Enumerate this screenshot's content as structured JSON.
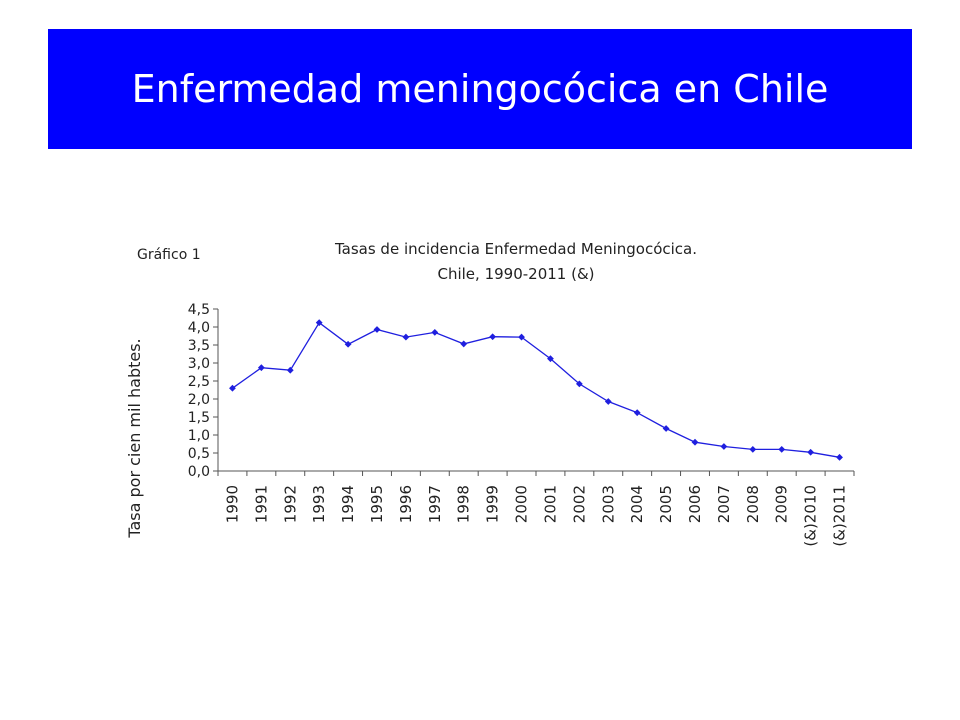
{
  "slide": {
    "title": "Enfermedad meningocócica en Chile",
    "banner_color": "#0000ff"
  },
  "chart_data": {
    "type": "line",
    "label": "Gráfico 1",
    "title_line1": "Tasas de incidencia Enfermedad Meningocócica.",
    "title_line2": "Chile, 1990-2011 (&)",
    "ylabel": "Tasa por cien mil habtes.",
    "xlabel": "",
    "ylim": [
      0,
      4.5
    ],
    "y_ticks": [
      "0,0",
      "0,5",
      "1,0",
      "1,5",
      "2,0",
      "2,5",
      "3,0",
      "3,5",
      "4,0",
      "4,5"
    ],
    "categories": [
      "1990",
      "1991",
      "1992",
      "1993",
      "1994",
      "1995",
      "1996",
      "1997",
      "1998",
      "1999",
      "2000",
      "2001",
      "2002",
      "2003",
      "2004",
      "2005",
      "2006",
      "2007",
      "2008",
      "2009",
      "(&)2010",
      "(&)2011"
    ],
    "values": [
      2.3,
      2.87,
      2.8,
      4.12,
      3.52,
      3.93,
      3.72,
      3.85,
      3.53,
      3.73,
      3.72,
      3.12,
      2.42,
      1.93,
      1.62,
      1.18,
      0.8,
      0.68,
      0.6,
      0.6,
      0.52,
      0.38
    ],
    "line_color": "#1f1fdf",
    "grid": false,
    "legend": "none"
  }
}
